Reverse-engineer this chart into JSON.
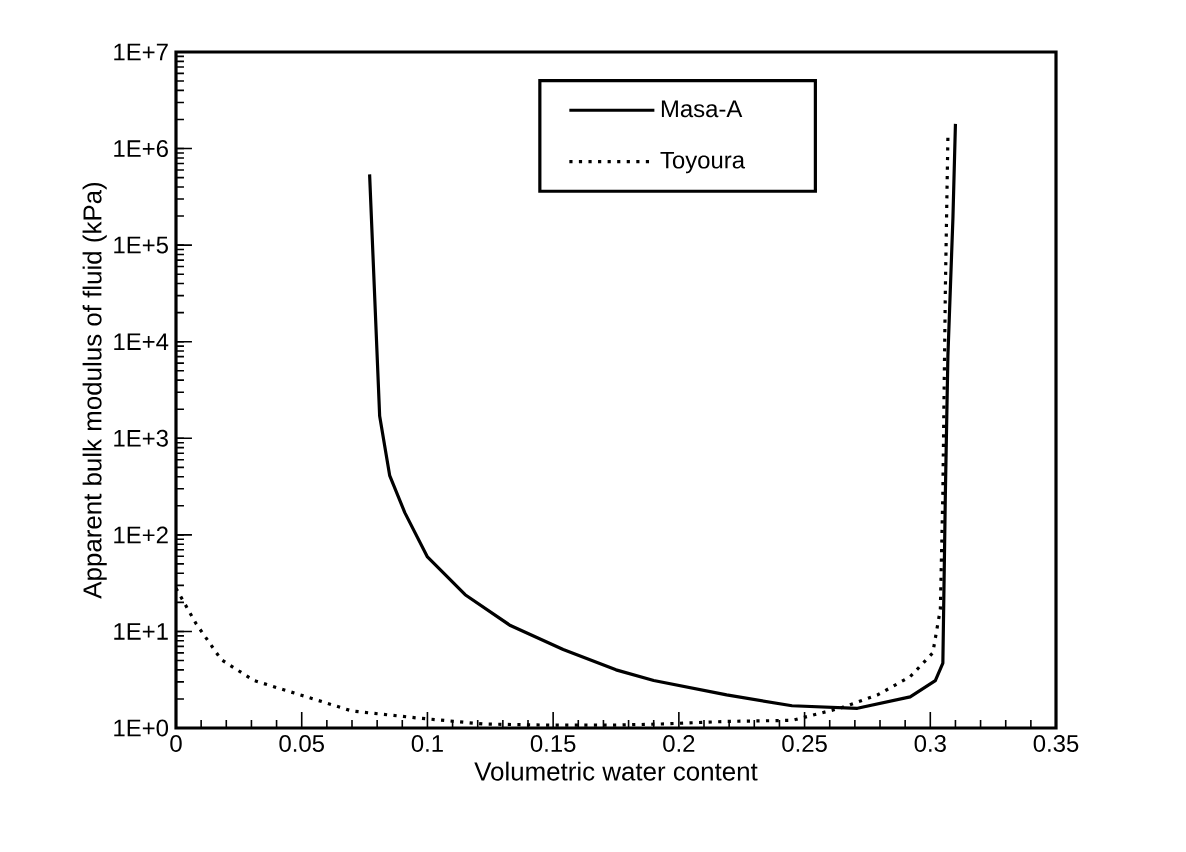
{
  "chart_data": {
    "type": "line",
    "xlabel": "Volumetric water content",
    "ylabel": "Apparent bulk modulus of fluid (kPa)",
    "log": "y",
    "legend": "top",
    "grid": false,
    "xlim": [
      0,
      0.35
    ],
    "ylim": [
      1,
      10000000
    ],
    "xticks": [
      0,
      0.05,
      0.1,
      0.15,
      0.2,
      0.25,
      0.3,
      0.35
    ],
    "yticks": [
      {
        "value": 1,
        "label": "1E+0"
      },
      {
        "value": 10,
        "label": "1E+1"
      },
      {
        "value": 100,
        "label": "1E+2"
      },
      {
        "value": 1000,
        "label": "1E+3"
      },
      {
        "value": 10000,
        "label": "1E+4"
      },
      {
        "value": 100000,
        "label": "1E+5"
      },
      {
        "value": 1000000,
        "label": "1E+6"
      },
      {
        "value": 10000000,
        "label": "1E+7"
      }
    ],
    "series": [
      {
        "name": "Masa-A",
        "color": "#000000",
        "line_style": "solid",
        "x": [
          0.077,
          0.081,
          0.085,
          0.091,
          0.1,
          0.115,
          0.133,
          0.154,
          0.175,
          0.19,
          0.219,
          0.245,
          0.271,
          0.292,
          0.302,
          0.305,
          0.306,
          0.307,
          0.309,
          0.31
        ],
        "values": [
          540000,
          1700,
          410,
          170,
          59,
          24,
          11.5,
          6.5,
          4.0,
          3.1,
          2.2,
          1.7,
          1.6,
          2.1,
          3.1,
          4.7,
          275,
          7100,
          190000,
          1800000
        ]
      },
      {
        "name": "Toyoura",
        "color": "#000000",
        "line_style": "dotted",
        "x": [
          0,
          0.008,
          0.018,
          0.031,
          0.052,
          0.07,
          0.096,
          0.122,
          0.148,
          0.174,
          0.193,
          0.219,
          0.245,
          0.264,
          0.279,
          0.292,
          0.301,
          0.304,
          0.305,
          0.306,
          0.307
        ],
        "values": [
          28,
          12,
          5.1,
          3.1,
          2.1,
          1.5,
          1.27,
          1.1,
          1.07,
          1.07,
          1.1,
          1.17,
          1.2,
          1.6,
          2.2,
          3.4,
          6,
          17,
          275,
          36000,
          1300000
        ]
      }
    ]
  }
}
